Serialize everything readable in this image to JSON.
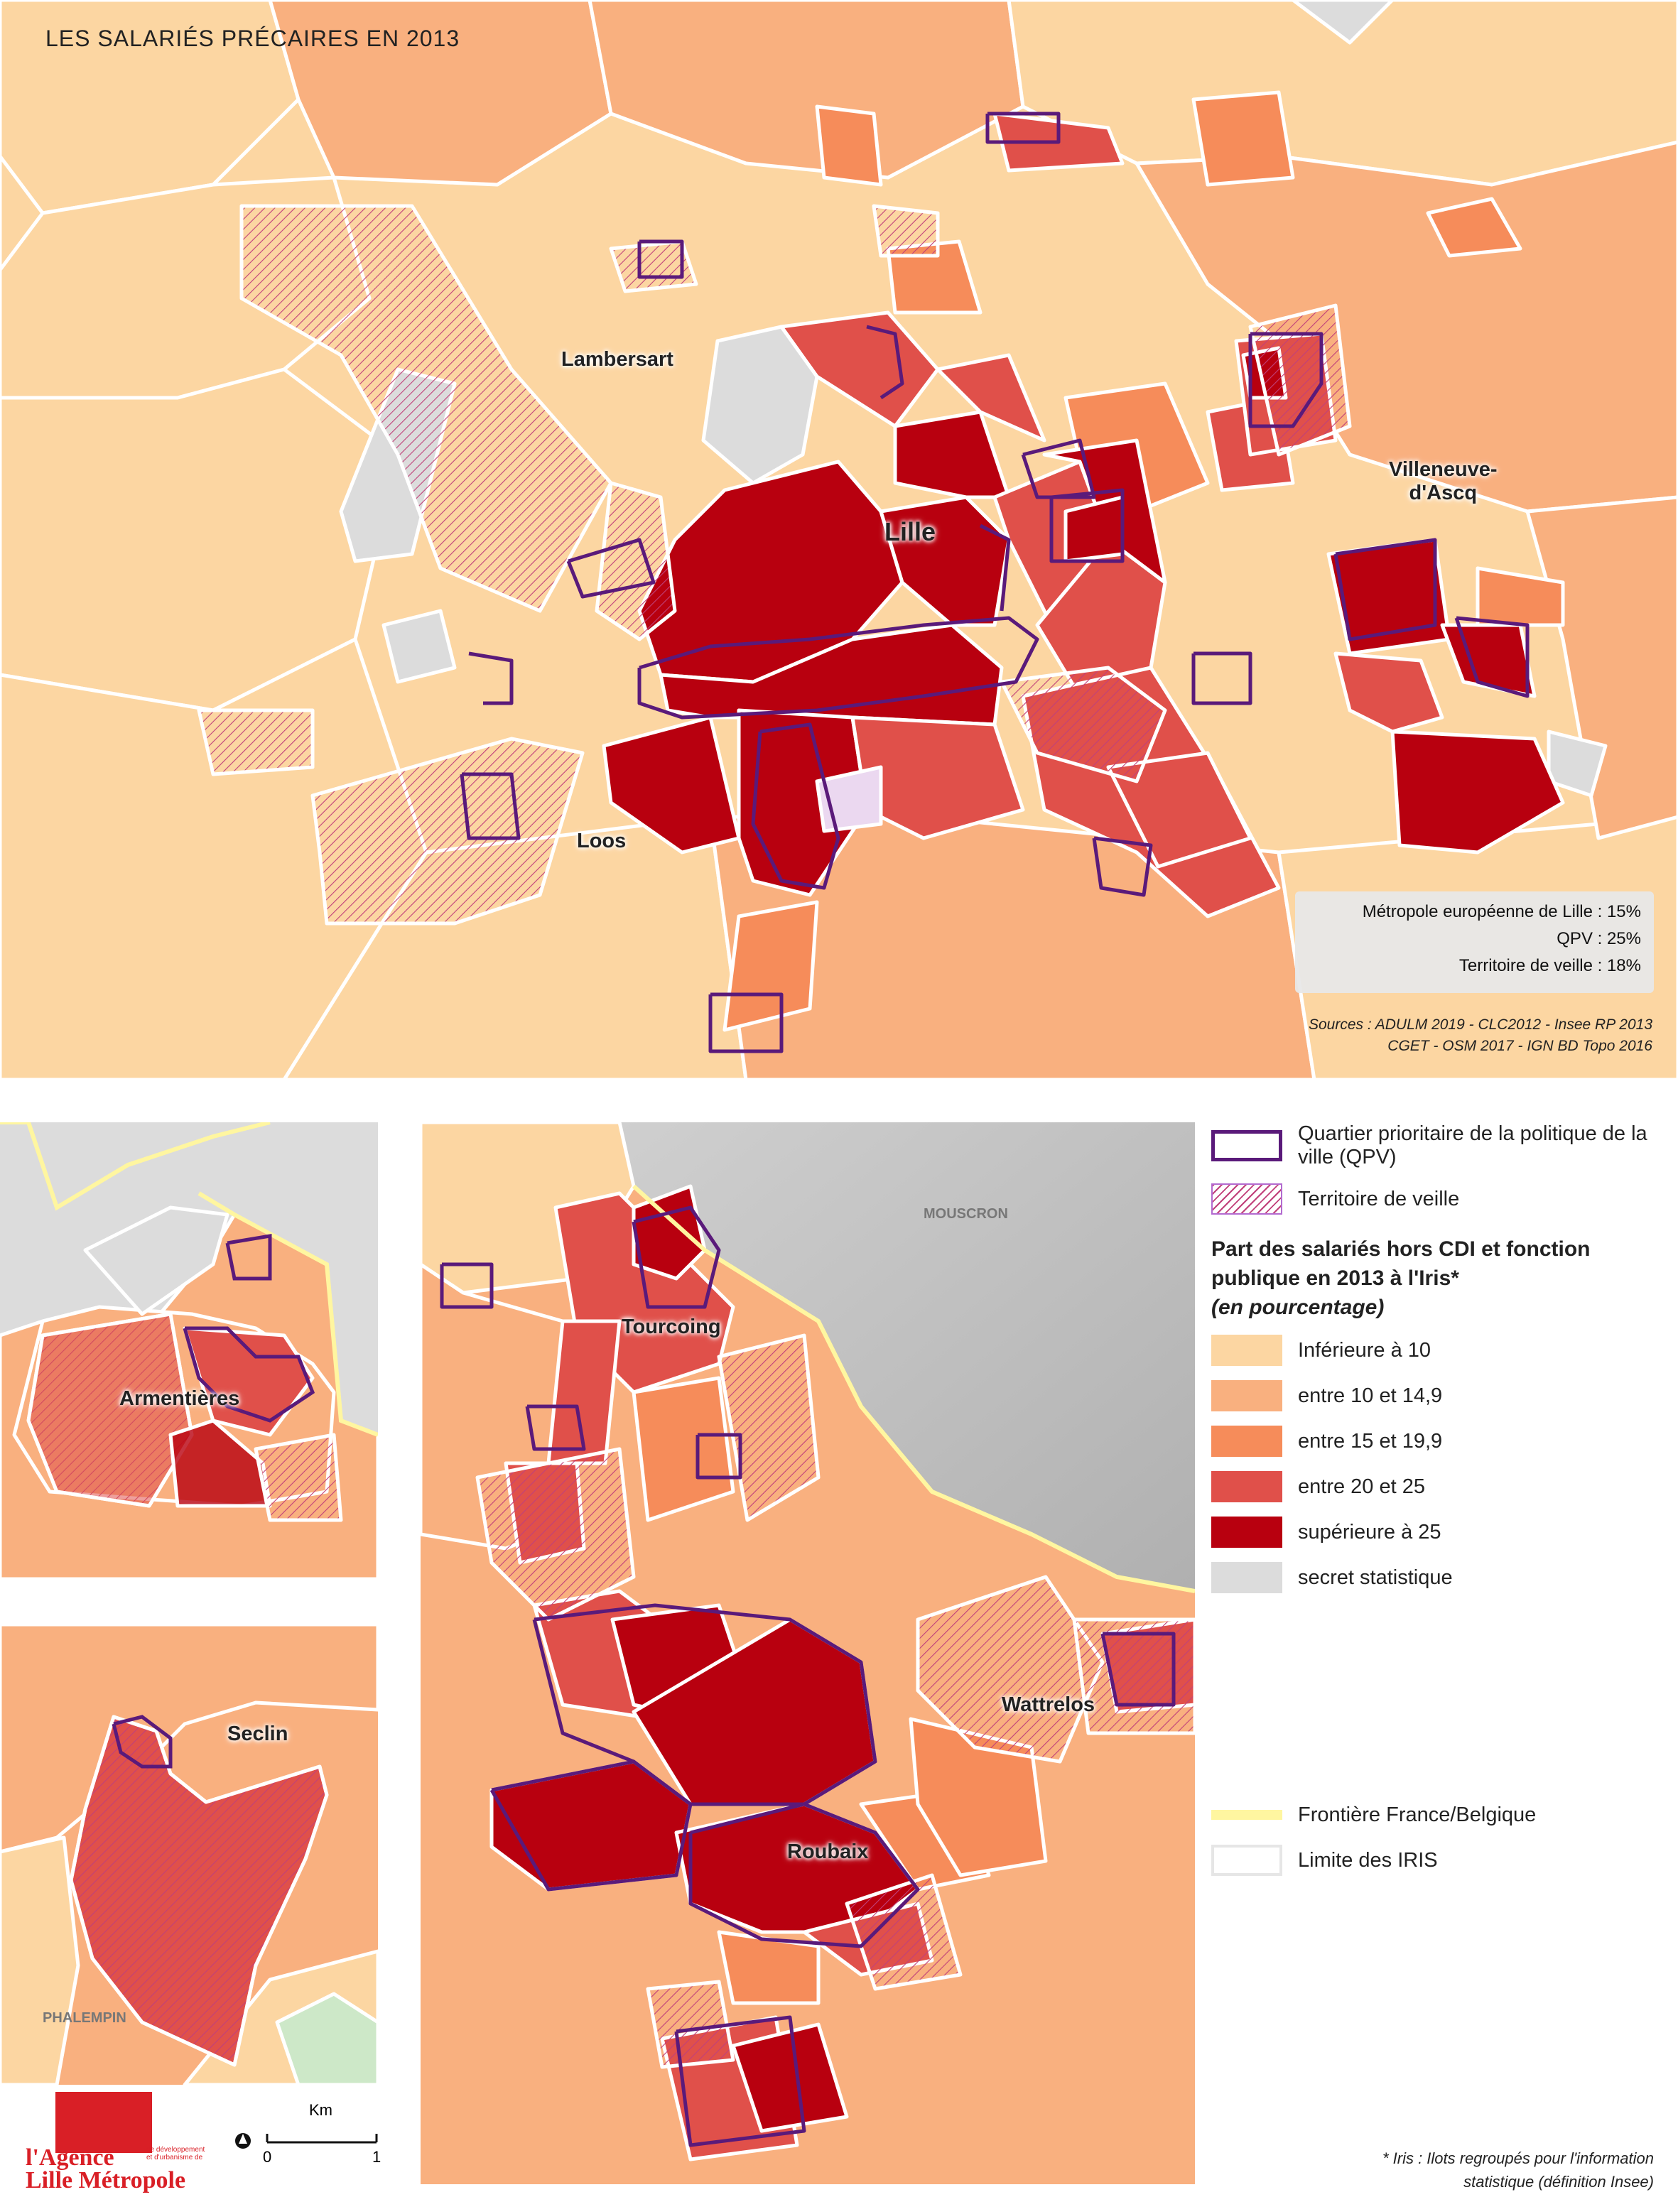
{
  "title": "LES SALARIÉS PRÉCAIRES EN 2013",
  "colors": {
    "lt10": "#fcd6a2",
    "c10_15": "#f9b07f",
    "c15_20": "#f68c5a",
    "c20_25": "#e0504a",
    "gt25": "#b8000f",
    "secret": "#dcdcdc",
    "qpv": "#5a1a7a",
    "veille": "#c0407a",
    "border": "#fff6a0"
  },
  "places": {
    "lambersart": "Lambersart",
    "lille": "Lille",
    "villeneuve": "Villeneuve-\nd'Ascq",
    "loos": "Loos",
    "armentieres": "Armentières",
    "seclin": "Seclin",
    "phalempin": "PHALEMPIN",
    "tourcoing": "Tourcoing",
    "mouscron": "MOUSCRON",
    "wattrelos": "Wattrelos",
    "roubaix": "Roubaix"
  },
  "stats": {
    "mel": "Métropole européenne de Lille : 15%",
    "qpv": "QPV : 25%",
    "veille": "Territoire de veille : 18%"
  },
  "sources": {
    "line1": "Sources : ADULM 2019 - CLC2012 - Insee RP 2013",
    "line2": "CGET - OSM 2017 - IGN BD Topo 2016"
  },
  "legend": {
    "qpv": "Quartier prioritaire de la politique de la ville (QPV)",
    "veille": "Territoire de veille",
    "title": "Part des salariés hors CDI et fonction publique en 2013 à l'Iris*",
    "subtitle": "(en pourcentage)",
    "classes": [
      {
        "label": "Inférieure à 10",
        "color": "#fcd6a2"
      },
      {
        "label": "entre 10 et 14,9",
        "color": "#f9b07f"
      },
      {
        "label": "entre 15 et 19,9",
        "color": "#f68c5a"
      },
      {
        "label": "entre 20 et 25",
        "color": "#e0504a"
      },
      {
        "label": "supérieure à 25",
        "color": "#b8000f"
      },
      {
        "label": "secret statistique",
        "color": "#dcdcdc"
      }
    ],
    "border": "Frontière France/Belgique",
    "iris": "Limite des IRIS"
  },
  "scale": {
    "unit": "Km",
    "min": "0",
    "max": "1"
  },
  "footnote": {
    "line1": "* Iris : Ilots regroupés pour l'information",
    "line2": "statistique (définition Insee)"
  },
  "logo": {
    "line1": "l'Agence",
    "line2": "Lille Métropole",
    "tagline": "de développement et d'urbanisme de"
  }
}
